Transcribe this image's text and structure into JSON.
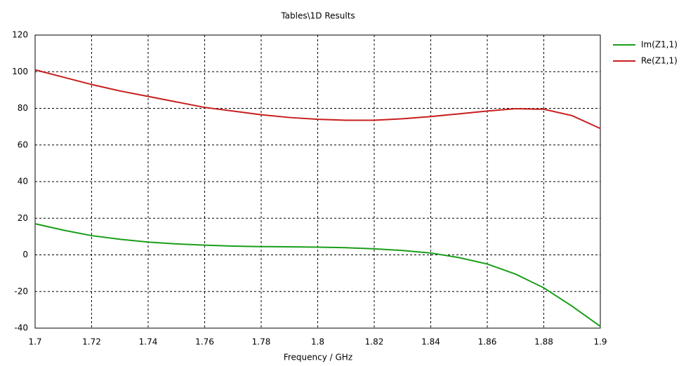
{
  "chart_data": {
    "type": "line",
    "title": "Tables\\1D Results",
    "x_label": "Frequency / GHz",
    "x": [
      1.7,
      1.71,
      1.72,
      1.73,
      1.74,
      1.75,
      1.76,
      1.77,
      1.78,
      1.79,
      1.8,
      1.81,
      1.82,
      1.83,
      1.84,
      1.85,
      1.86,
      1.87,
      1.88,
      1.89,
      1.9
    ],
    "series": [
      {
        "name": "Im(Z1,1)",
        "color": "#1a9e1a",
        "values": [
          17,
          13.5,
          10.5,
          8.5,
          7,
          6,
          5.3,
          4.8,
          4.5,
          4.4,
          4.2,
          3.9,
          3.3,
          2.4,
          1,
          -1.5,
          -5,
          -10.5,
          -18,
          -28,
          -39
        ]
      },
      {
        "name": "Re(Z1,1)",
        "color": "#c81e1e",
        "values": [
          101,
          97,
          93,
          89.5,
          86.5,
          83.5,
          80.5,
          78.5,
          76.5,
          75,
          74,
          73.5,
          73.5,
          74.3,
          75.5,
          77,
          78.5,
          79.8,
          79.5,
          76,
          69
        ]
      }
    ],
    "xlim": [
      1.7,
      1.9
    ],
    "xticks": [
      1.7,
      1.72,
      1.74,
      1.76,
      1.78,
      1.8,
      1.82,
      1.84,
      1.86,
      1.88,
      1.9
    ],
    "ylim": [
      -40,
      120
    ],
    "yticks": [
      -40,
      -20,
      0,
      20,
      40,
      60,
      80,
      100,
      120
    ],
    "grid": true,
    "legend": "right"
  }
}
